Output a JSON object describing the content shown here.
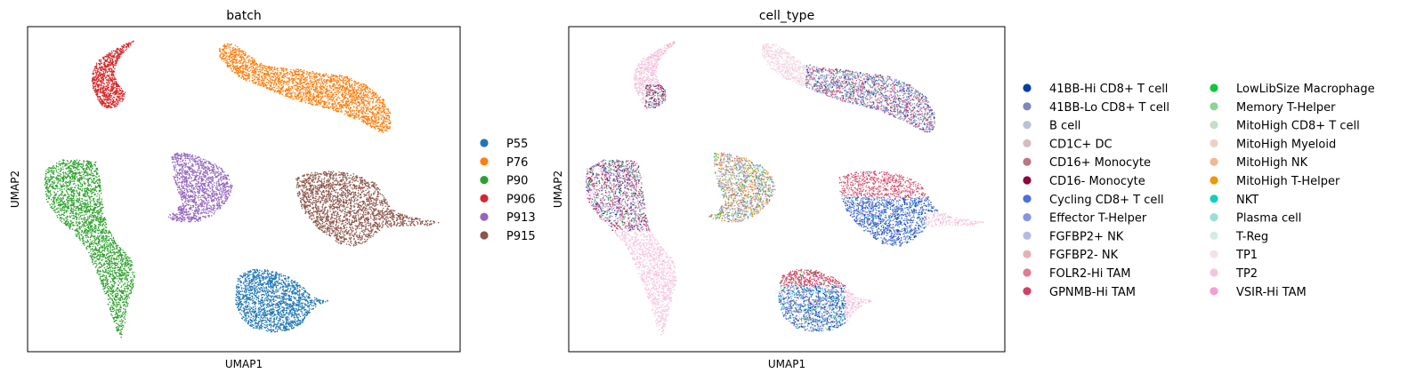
{
  "chart_data": [
    {
      "type": "scatter",
      "title": "batch",
      "xlabel": "UMAP1",
      "ylabel": "UMAP2",
      "ticks_shown": false,
      "legend_placement": "right",
      "legend": [
        {
          "label": "P55",
          "color": "#1f77b4"
        },
        {
          "label": "P76",
          "color": "#ff7f0e"
        },
        {
          "label": "P90",
          "color": "#2ca02c"
        },
        {
          "label": "P906",
          "color": "#d62728"
        },
        {
          "label": "P913",
          "color": "#9467bd"
        },
        {
          "label": "P915",
          "color": "#8c564b"
        }
      ],
      "clusters": [
        {
          "label": "P906",
          "shape": "crescent",
          "center": [
            -6.3,
            6.9
          ]
        },
        {
          "label": "P76",
          "shape": "elongated",
          "center": [
            2.4,
            6.5
          ]
        },
        {
          "label": "P90",
          "shape": "elongated",
          "center": [
            -7.8,
            -1.0
          ]
        },
        {
          "label": "P913",
          "shape": "blob",
          "center": [
            -3.2,
            1.5
          ]
        },
        {
          "label": "P915",
          "shape": "blob-with-tail",
          "center": [
            4.5,
            0.6
          ]
        },
        {
          "label": "P55",
          "shape": "blob-with-tail",
          "center": [
            0.9,
            -4.6
          ]
        }
      ]
    },
    {
      "type": "scatter",
      "title": "cell_type",
      "xlabel": "UMAP1",
      "ylabel": "UMAP2",
      "ticks_shown": false,
      "legend_placement": "right",
      "legend": [
        {
          "label": "41BB-Hi CD8+ T cell",
          "color": "#023fa5"
        },
        {
          "label": "41BB-Lo CD8+ T cell",
          "color": "#7d87b9"
        },
        {
          "label": "B cell",
          "color": "#bec1d4"
        },
        {
          "label": "CD1C+ DC",
          "color": "#d6bcc0"
        },
        {
          "label": "CD16+ Monocyte",
          "color": "#bb7784"
        },
        {
          "label": "CD16- Monocyte",
          "color": "#8e063b"
        },
        {
          "label": "Cycling CD8+ T cell",
          "color": "#4a6fe3"
        },
        {
          "label": "Effector T-Helper",
          "color": "#8595e1"
        },
        {
          "label": "FGFBP2+ NK",
          "color": "#b5bbe3"
        },
        {
          "label": "FGFBP2- NK",
          "color": "#e6afb9"
        },
        {
          "label": "FOLR2-Hi TAM",
          "color": "#e07b91"
        },
        {
          "label": "GPNMB-Hi TAM",
          "color": "#d33f6a"
        },
        {
          "label": "LowLibSize Macrophage",
          "color": "#11c638"
        },
        {
          "label": "Memory T-Helper",
          "color": "#8dd593"
        },
        {
          "label": "MitoHigh CD8+ T cell",
          "color": "#c6dec7"
        },
        {
          "label": "MitoHigh Myeloid",
          "color": "#ead3c6"
        },
        {
          "label": "MitoHigh NK",
          "color": "#f0b98d"
        },
        {
          "label": "MitoHigh T-Helper",
          "color": "#ef9708"
        },
        {
          "label": "NKT",
          "color": "#0fcfc0"
        },
        {
          "label": "Plasma cell",
          "color": "#9cded6"
        },
        {
          "label": "T-Reg",
          "color": "#d5eae7"
        },
        {
          "label": "TP1",
          "color": "#f3e1eb"
        },
        {
          "label": "TP2",
          "color": "#f6c4e1"
        },
        {
          "label": "VSIR-Hi TAM",
          "color": "#f79cd4"
        }
      ]
    }
  ]
}
